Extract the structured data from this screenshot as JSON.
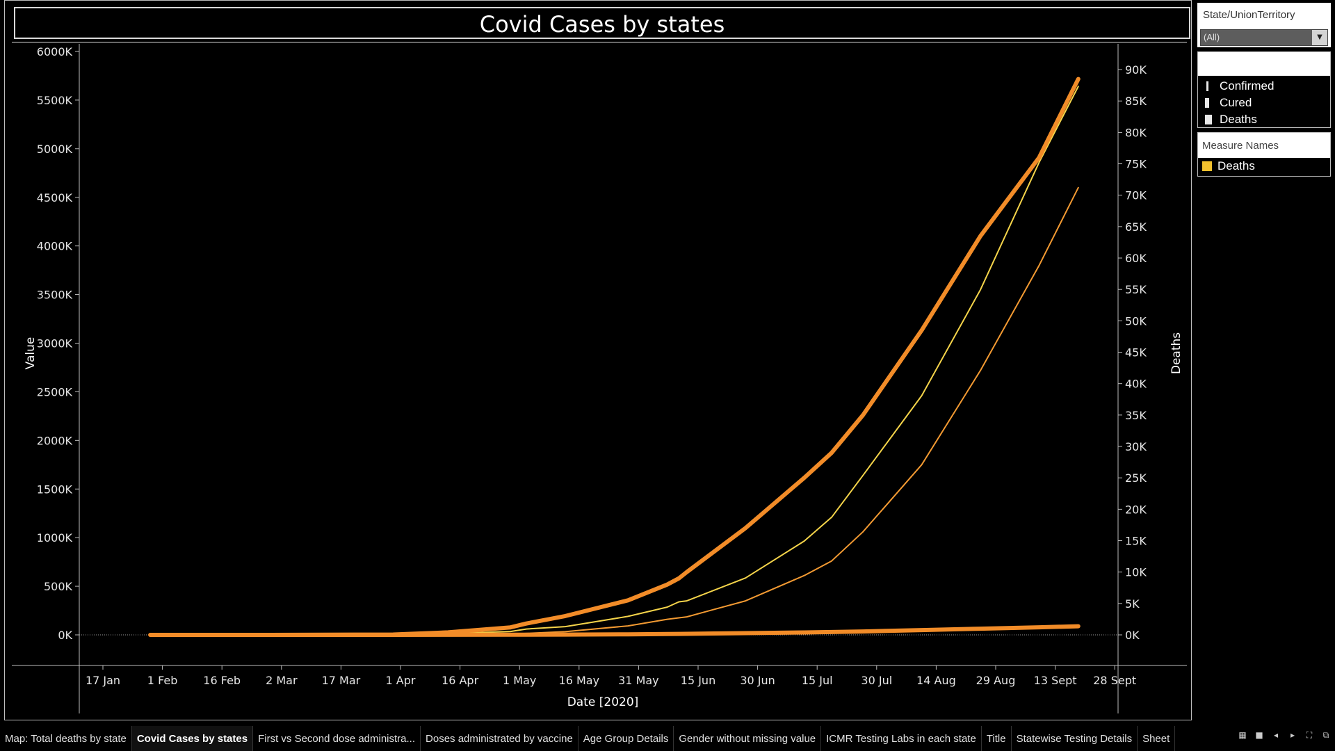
{
  "page_title": "Covid Cases by states",
  "filter": {
    "title": "State/UnionTerritory",
    "selected": "(All)"
  },
  "legend": {
    "items": [
      "Confirmed",
      "Cured",
      "Deaths"
    ]
  },
  "measure_names": {
    "title": "Measure Names",
    "items": [
      {
        "label": "Deaths",
        "color": "#f2c12e"
      }
    ]
  },
  "tabs": [
    "Map: Total deaths by state",
    "Covid Cases by states",
    "First vs Second dose administra...",
    "Doses administrated by vaccine",
    "Age Group Details",
    "Gender without missing value",
    "ICMR Testing Labs in each state",
    "Title",
    "Statewise Testing Details",
    "Sheet"
  ],
  "active_tab": "Covid Cases by states",
  "tab_icons": [
    "grid-icon",
    "square-icon",
    "prev-icon",
    "next-icon",
    "fullscreen-icon",
    "present-icon"
  ],
  "chart_data": {
    "type": "line",
    "title": "Covid Cases by states",
    "xlabel": "Date [2020]",
    "ylabel": "Value",
    "y2label": "Deaths",
    "x_ticks": [
      "17 Jan",
      "1 Feb",
      "16 Feb",
      "2 Mar",
      "17 Mar",
      "1 Apr",
      "16 Apr",
      "1 May",
      "16 May",
      "31 May",
      "15 Jun",
      "30 Jun",
      "15 Jul",
      "30 Jul",
      "14 Aug",
      "29 Aug",
      "13 Sept",
      "28 Sept"
    ],
    "x_range": [
      "2020-01-17",
      "2020-09-28"
    ],
    "y_ticks": [
      "0K",
      "500K",
      "1000K",
      "1500K",
      "2000K",
      "2500K",
      "3000K",
      "3500K",
      "4000K",
      "4500K",
      "5000K",
      "5500K",
      "6000K"
    ],
    "ylim": [
      0,
      6000000
    ],
    "y2_ticks": [
      "0K",
      "5K",
      "10K",
      "15K",
      "20K",
      "25K",
      "30K",
      "35K",
      "40K",
      "45K",
      "50K",
      "55K",
      "60K",
      "65K",
      "70K",
      "75K",
      "80K",
      "85K",
      "90K"
    ],
    "y2lim": [
      0,
      92000
    ],
    "dates": [
      "2020-01-30",
      "2020-03-01",
      "2020-04-01",
      "2020-04-15",
      "2020-05-01",
      "2020-05-05",
      "2020-05-15",
      "2020-05-31",
      "2020-06-10",
      "2020-06-13",
      "2020-06-15",
      "2020-06-30",
      "2020-07-15",
      "2020-07-22",
      "2020-07-30",
      "2020-08-14",
      "2020-08-29",
      "2020-09-13",
      "2020-09-23"
    ],
    "series": [
      {
        "name": "Confirmed",
        "axis": "left",
        "color": "#f5d44a",
        "width": 2,
        "values": [
          0,
          0,
          1500,
          12000,
          35000,
          60000,
          85000,
          190000,
          285000,
          340000,
          350000,
          585000,
          965000,
          1210000,
          1640000,
          2460000,
          3550000,
          4860000,
          5640000
        ]
      },
      {
        "name": "Cured",
        "axis": "left",
        "color": "#f39a32",
        "width": 2,
        "values": [
          0,
          0,
          100,
          1500,
          9000,
          15000,
          33000,
          92000,
          160000,
          175000,
          185000,
          350000,
          610000,
          760000,
          1060000,
          1750000,
          2720000,
          3800000,
          4600000
        ]
      },
      {
        "name": "Deaths",
        "axis": "left",
        "color": "#f28c28",
        "width": 6,
        "values": [
          0,
          0,
          50,
          400,
          1200,
          1800,
          3000,
          6000,
          9000,
          10000,
          11000,
          18000,
          25000,
          29000,
          35000,
          49000,
          64000,
          78000,
          89000
        ]
      },
      {
        "name": "Deaths",
        "axis": "right",
        "color": "#f28c28",
        "width": 6,
        "values": [
          0,
          0,
          50,
          400,
          1200,
          1800,
          3000,
          5500,
          8000,
          9000,
          10000,
          17000,
          25000,
          29000,
          35000,
          48500,
          63500,
          76000,
          88500
        ]
      }
    ]
  }
}
